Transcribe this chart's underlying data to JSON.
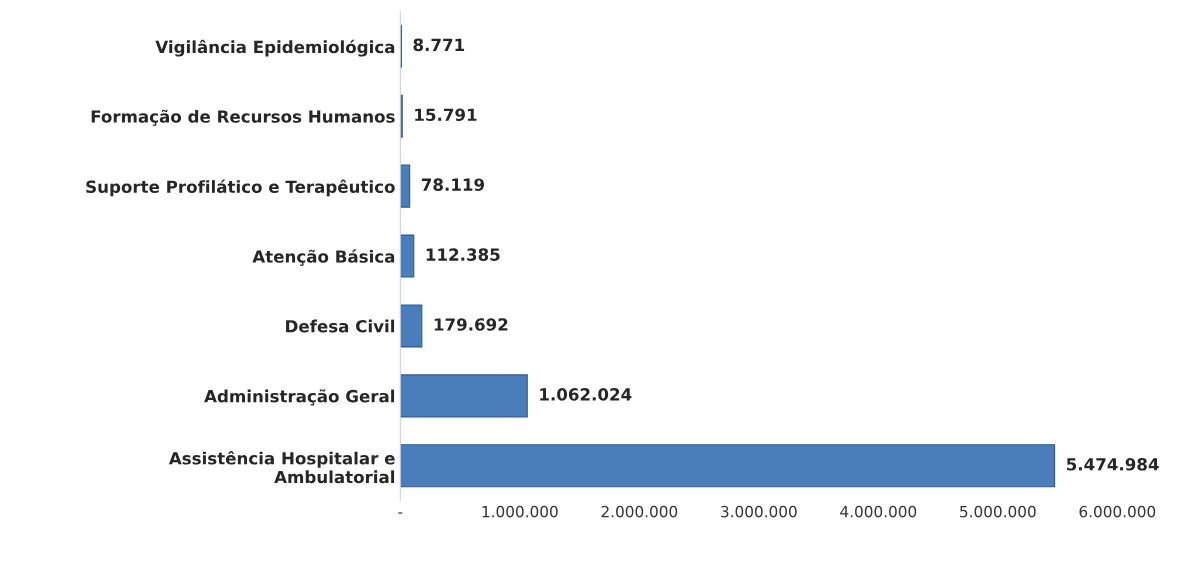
{
  "chart_data": {
    "type": "bar",
    "orientation": "horizontal",
    "categories": [
      "Vigilância Epidemiológica",
      "Formação de Recursos Humanos",
      "Suporte Profilático e Terapêutico",
      "Atenção Básica",
      "Defesa Civil",
      "Administração Geral",
      "Assistência Hospitalar e\nAmbulatorial"
    ],
    "values": [
      8771,
      15791,
      78119,
      112385,
      179692,
      1062024,
      5474984
    ],
    "value_labels": [
      "8.771",
      "15.791",
      "78.119",
      "112.385",
      "179.692",
      "1.062.024",
      "5.474.984"
    ],
    "color": "#4a7ebb",
    "xlim": [
      0,
      6000000
    ],
    "xticks": [
      {
        "value": 0,
        "label": "-"
      },
      {
        "value": 1000000,
        "label": "1.000.000"
      },
      {
        "value": 2000000,
        "label": "2.000.000"
      },
      {
        "value": 3000000,
        "label": "3.000.000"
      },
      {
        "value": 4000000,
        "label": "4.000.000"
      },
      {
        "value": 5000000,
        "label": "5.000.000"
      },
      {
        "value": 6000000,
        "label": "6.000.000"
      }
    ],
    "grid": false,
    "legend": false
  }
}
